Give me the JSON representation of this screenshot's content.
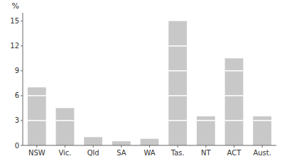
{
  "chart_data": {
    "type": "bar",
    "y_label": "%",
    "categories": [
      "NSW",
      "Vic.",
      "Qld",
      "SA",
      "WA",
      "Tas.",
      "NT",
      "ACT",
      "Aust."
    ],
    "values": [
      7.0,
      4.5,
      1.0,
      0.5,
      0.8,
      15.0,
      3.5,
      10.5,
      3.5
    ],
    "color": "#c8c8c8",
    "ylim": [
      0,
      16
    ],
    "yticks": [
      0,
      3,
      6,
      9,
      12,
      15
    ],
    "grid": true
  }
}
